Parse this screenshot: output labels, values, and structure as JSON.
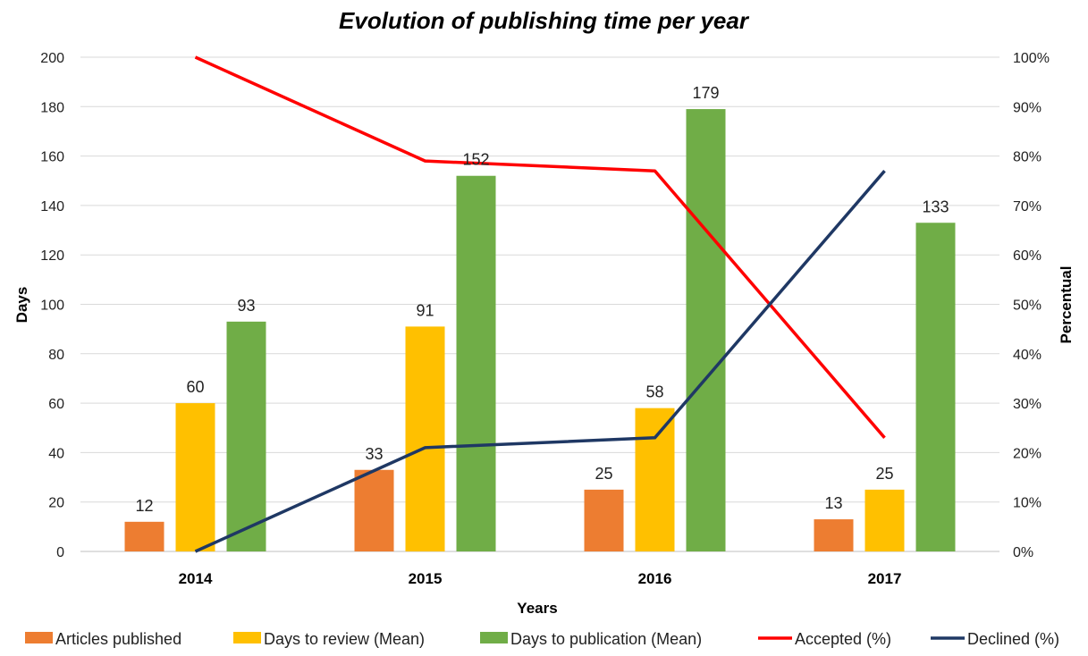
{
  "chart_data": {
    "type": "bar",
    "title": "Evolution of publishing time per year",
    "xlabel": "Years",
    "ylabel": "Days",
    "y2label": "Percentual",
    "categories": [
      "2014",
      "2015",
      "2016",
      "2017"
    ],
    "ylim": [
      0,
      200
    ],
    "yticks": [
      0,
      20,
      40,
      60,
      80,
      100,
      120,
      140,
      160,
      180,
      200
    ],
    "y2lim": [
      0,
      100
    ],
    "y2ticks": [
      "0%",
      "10%",
      "20%",
      "30%",
      "40%",
      "50%",
      "60%",
      "70%",
      "80%",
      "90%",
      "100%"
    ],
    "grid": true,
    "legend_position": "bottom",
    "bar_series": [
      {
        "name": "Articles published",
        "color": "#ed7d31",
        "values": [
          12,
          33,
          25,
          13
        ]
      },
      {
        "name": "Days to review (Mean)",
        "color": "#ffc000",
        "values": [
          60,
          91,
          58,
          25
        ]
      },
      {
        "name": "Days to publication (Mean)",
        "color": "#70ad47",
        "values": [
          93,
          152,
          179,
          133
        ]
      }
    ],
    "line_series": [
      {
        "name": "Accepted (%)",
        "color": "#ff0000",
        "axis": "right",
        "values": [
          100,
          79,
          77,
          23
        ]
      },
      {
        "name": "Declined (%)",
        "color": "#1f3864",
        "axis": "right",
        "values": [
          0,
          21,
          23,
          77
        ]
      }
    ]
  }
}
